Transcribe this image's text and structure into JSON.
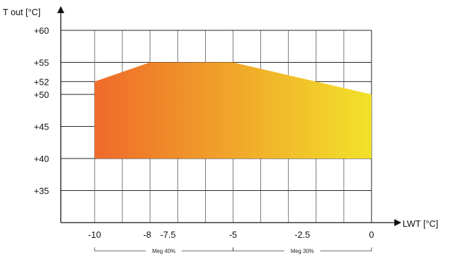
{
  "chart_data": {
    "type": "area",
    "title": "",
    "xlabel": "LWT [°C]",
    "ylabel": "T out [°C]",
    "xlim": [
      -10,
      0
    ],
    "ylim": [
      31.5,
      61
    ],
    "grid": true,
    "x_ticks": [
      {
        "value": -10,
        "label": "-10"
      },
      {
        "value": -8,
        "label": "-8"
      },
      {
        "value": -7.5,
        "label": "-7.5"
      },
      {
        "value": -5,
        "label": "-5"
      },
      {
        "value": -2.5,
        "label": "-2.5"
      },
      {
        "value": 0,
        "label": "0"
      }
    ],
    "y_ticks": [
      {
        "value": 60,
        "label": "+60"
      },
      {
        "value": 55,
        "label": "+55"
      },
      {
        "value": 52,
        "label": "+52"
      },
      {
        "value": 50,
        "label": "+50"
      },
      {
        "value": 45,
        "label": "+45"
      },
      {
        "value": 40,
        "label": "+40"
      },
      {
        "value": 35,
        "label": "+35"
      }
    ],
    "envelope": {
      "upper": [
        {
          "x": -10,
          "y": 52
        },
        {
          "x": -8,
          "y": 55
        },
        {
          "x": -5,
          "y": 55
        },
        {
          "x": 0,
          "y": 50
        }
      ],
      "lower": [
        {
          "x": -10,
          "y": 40
        },
        {
          "x": 0,
          "y": 40
        }
      ],
      "gradient": [
        "#ef6a2a",
        "#f2e22a"
      ]
    },
    "brackets": [
      {
        "label": "Meg 40%",
        "x_start": -10,
        "x_end": -5
      },
      {
        "label": "Meg 30%",
        "x_start": -5,
        "x_end": 0
      }
    ]
  }
}
